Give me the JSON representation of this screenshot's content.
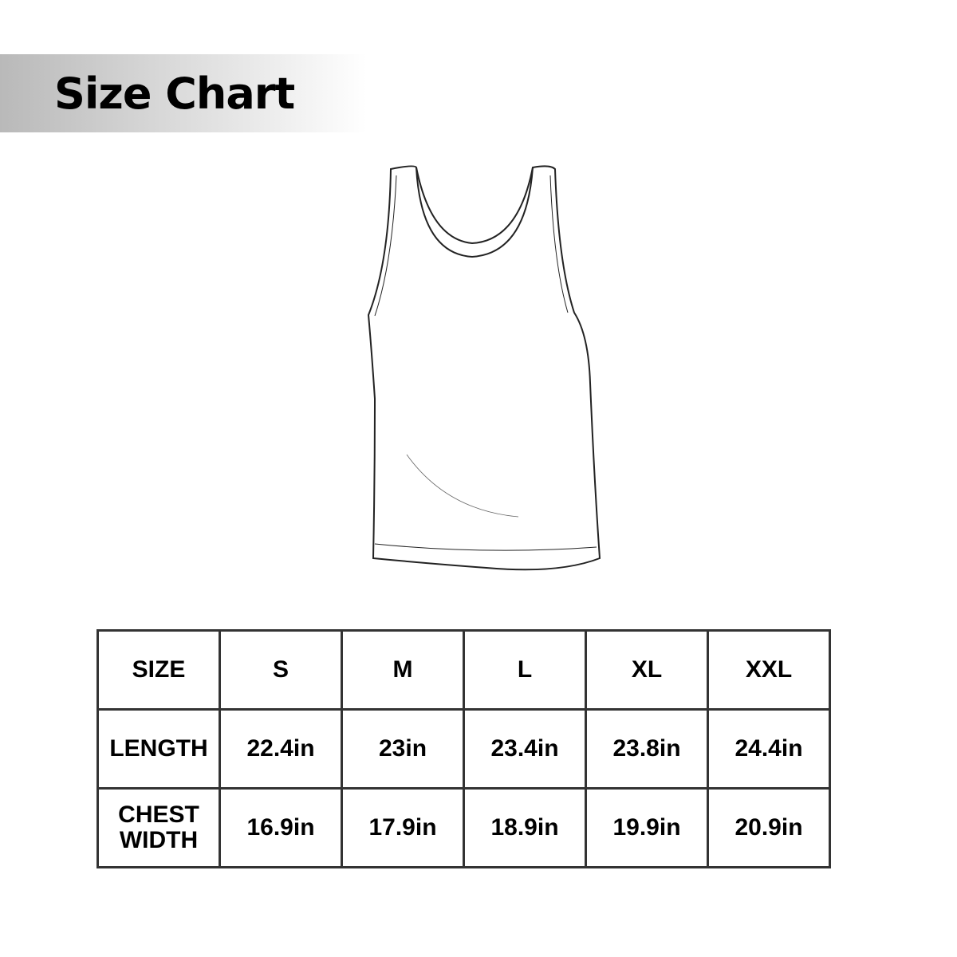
{
  "title": "Size Chart",
  "garment_icon": "tank-top-outline",
  "table": {
    "header": [
      "SIZE",
      "S",
      "M",
      "L",
      "XL",
      "XXL"
    ],
    "rows": [
      {
        "label": "LENGTH",
        "values": [
          "22.4in",
          "23in",
          "23.4in",
          "23.8in",
          "24.4in"
        ]
      },
      {
        "label_lines": [
          "CHEST",
          "WIDTH"
        ],
        "values": [
          "16.9in",
          "17.9in",
          "18.9in",
          "19.9in",
          "20.9in"
        ]
      }
    ]
  }
}
